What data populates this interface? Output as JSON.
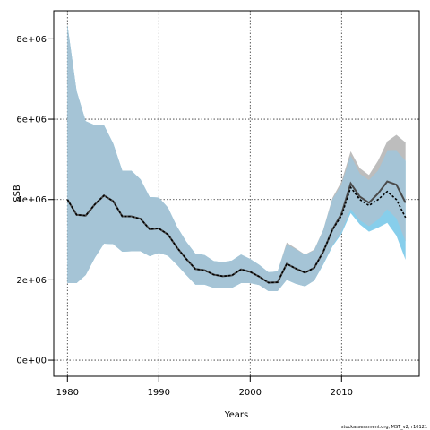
{
  "chart_data": {
    "type": "area",
    "xlabel": "Years",
    "ylabel": "SSB",
    "footer": "stockassessment.org, MST_v2, r10121",
    "xlim": [
      1978.5,
      2018.5
    ],
    "ylim": [
      -400000,
      8700000
    ],
    "x_ticks": [
      1980,
      1990,
      2000,
      2010
    ],
    "x_tick_labels": [
      "1980",
      "1990",
      "2000",
      "2010"
    ],
    "y_ticks": [
      0,
      2000000,
      4000000,
      6000000,
      8000000
    ],
    "y_tick_labels": [
      "0e+00",
      "2e+06",
      "4e+06",
      "6e+06",
      "8e+06"
    ],
    "grid": true,
    "colors": {
      "band_run1": "#bdbdbd",
      "band_run2": "#87ceeb",
      "overlap": "#a5c4d6",
      "line_run1": "#4a4a4a",
      "line_run2": "#000000",
      "grid": "#333333"
    },
    "series": [
      {
        "x": [
          1980,
          1981,
          1982,
          1983,
          1984,
          1985,
          1986,
          1987,
          1988,
          1989,
          1990,
          1991,
          1992,
          1993,
          1994,
          1995,
          1996,
          1997,
          1998,
          1999,
          2000,
          2001,
          2002,
          2003,
          2004,
          2005,
          2006,
          2007,
          2008,
          2009,
          2010,
          2011,
          2012,
          2013,
          2014,
          2015,
          2016,
          2017
        ],
        "estimate": [
          4000000,
          3620000,
          3600000,
          3880000,
          4100000,
          3960000,
          3580000,
          3580000,
          3520000,
          3260000,
          3280000,
          3130000,
          2800000,
          2520000,
          2270000,
          2240000,
          2130000,
          2090000,
          2110000,
          2260000,
          2200000,
          2080000,
          1930000,
          1940000,
          2400000,
          2280000,
          2180000,
          2300000,
          2700000,
          3250000,
          3650000,
          4400000,
          4070000,
          3920000,
          4150000,
          4450000,
          4370000,
          3920000
        ],
        "lower": [
          1920000,
          1920000,
          2120000,
          2550000,
          2900000,
          2890000,
          2700000,
          2710000,
          2710000,
          2590000,
          2670000,
          2600000,
          2370000,
          2120000,
          1880000,
          1880000,
          1800000,
          1790000,
          1800000,
          1920000,
          1920000,
          1870000,
          1720000,
          1720000,
          2000000,
          1900000,
          1840000,
          1980000,
          2400000,
          2860000,
          3200000,
          3760000,
          3480000,
          3340000,
          3500000,
          3760000,
          3530000,
          2960000
        ],
        "upper": [
          8350000,
          6700000,
          5950000,
          5850000,
          5850000,
          5400000,
          4720000,
          4720000,
          4500000,
          4060000,
          4050000,
          3800000,
          3320000,
          2950000,
          2650000,
          2620000,
          2470000,
          2440000,
          2480000,
          2630000,
          2520000,
          2370000,
          2190000,
          2210000,
          2930000,
          2780000,
          2630000,
          2750000,
          3250000,
          4040000,
          4450000,
          5200000,
          4780000,
          4610000,
          4970000,
          5450000,
          5610000,
          5420000
        ]
      },
      {
        "x": [
          1980,
          1981,
          1982,
          1983,
          1984,
          1985,
          1986,
          1987,
          1988,
          1989,
          1990,
          1991,
          1992,
          1993,
          1994,
          1995,
          1996,
          1997,
          1998,
          1999,
          2000,
          2001,
          2002,
          2003,
          2004,
          2005,
          2006,
          2007,
          2008,
          2009,
          2010,
          2011,
          2012,
          2013,
          2014,
          2015,
          2016,
          2017
        ],
        "estimate": [
          4000000,
          3620000,
          3600000,
          3880000,
          4100000,
          3960000,
          3580000,
          3580000,
          3520000,
          3260000,
          3280000,
          3130000,
          2800000,
          2520000,
          2270000,
          2240000,
          2130000,
          2090000,
          2110000,
          2260000,
          2200000,
          2080000,
          1930000,
          1940000,
          2400000,
          2280000,
          2180000,
          2300000,
          2700000,
          3250000,
          3600000,
          4300000,
          4000000,
          3850000,
          4000000,
          4200000,
          4000000,
          3550000
        ],
        "lower": [
          1920000,
          1920000,
          2120000,
          2550000,
          2900000,
          2890000,
          2700000,
          2710000,
          2710000,
          2590000,
          2670000,
          2600000,
          2370000,
          2120000,
          1880000,
          1880000,
          1800000,
          1790000,
          1800000,
          1920000,
          1920000,
          1870000,
          1720000,
          1720000,
          2000000,
          1900000,
          1840000,
          1980000,
          2380000,
          2830000,
          3150000,
          3660000,
          3380000,
          3200000,
          3300000,
          3420000,
          3100000,
          2500000
        ],
        "upper": [
          8350000,
          6700000,
          5950000,
          5850000,
          5850000,
          5400000,
          4720000,
          4720000,
          4500000,
          4060000,
          4050000,
          3800000,
          3320000,
          2950000,
          2650000,
          2620000,
          2470000,
          2440000,
          2480000,
          2630000,
          2520000,
          2370000,
          2190000,
          2210000,
          2880000,
          2760000,
          2620000,
          2730000,
          3230000,
          4000000,
          4370000,
          5080000,
          4640000,
          4480000,
          4720000,
          5200000,
          5210000,
          4960000
        ]
      }
    ]
  }
}
